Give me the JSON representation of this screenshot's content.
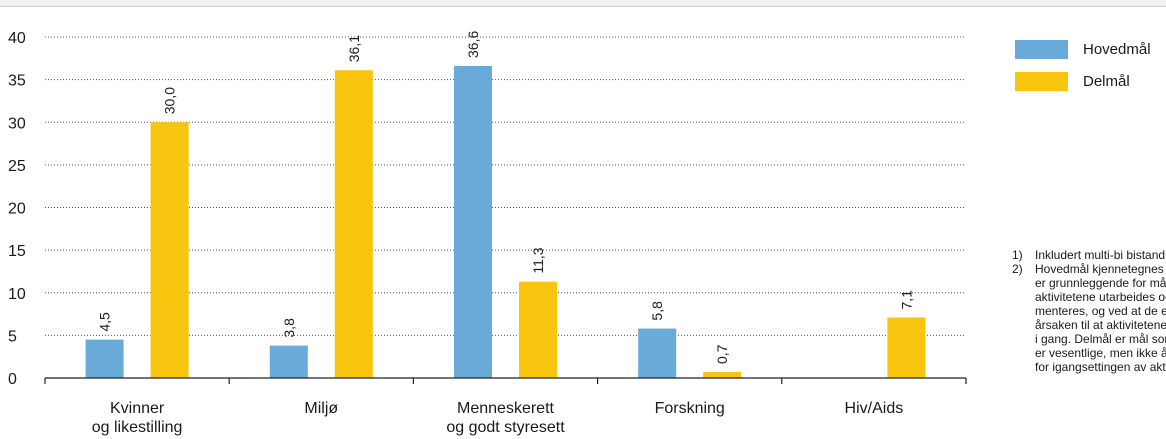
{
  "chart_data": {
    "type": "bar",
    "categories": [
      [
        "Kvinner",
        "og likestilling"
      ],
      [
        "Miljø"
      ],
      [
        "Menneskerett",
        "og godt styresett"
      ],
      [
        "Forskning"
      ],
      [
        "Hiv/Aids"
      ]
    ],
    "series": [
      {
        "name": "Hovedmål",
        "color": "#6aaad8",
        "values": [
          4.5,
          3.8,
          36.6,
          5.8,
          null
        ],
        "labels": [
          "4,5",
          "3,8",
          "36,6",
          "5,8",
          ""
        ]
      },
      {
        "name": "Delmål",
        "color": "#f7c50d",
        "values": [
          30.0,
          36.1,
          11.3,
          0.7,
          7.1
        ],
        "labels": [
          "30,0",
          "36,1",
          "11,3",
          "0,7",
          "7,1"
        ]
      }
    ],
    "yticks": [
      "0",
      "5",
      "10",
      "15",
      "20",
      "25",
      "30",
      "35",
      "40"
    ],
    "ylim": [
      0,
      40
    ],
    "grid": "dotted horizontal",
    "legend_position": "right"
  },
  "notes": [
    {
      "num": "1)",
      "lines": [
        "Inkludert multi-bi bistand."
      ]
    },
    {
      "num": "2)",
      "lines": [
        "Hovedmål kjennetegnes ved at de",
        "er grunnleggende for måten",
        "aktivitetene utarbeides og imple-",
        "menteres, og ved at de er",
        "årsaken til at aktivitetene ble satt",
        "i gang. Delmål er mål som",
        "er vesentlige, men ikke årsaken",
        "for igangsettingen av aktiviteten."
      ]
    }
  ]
}
